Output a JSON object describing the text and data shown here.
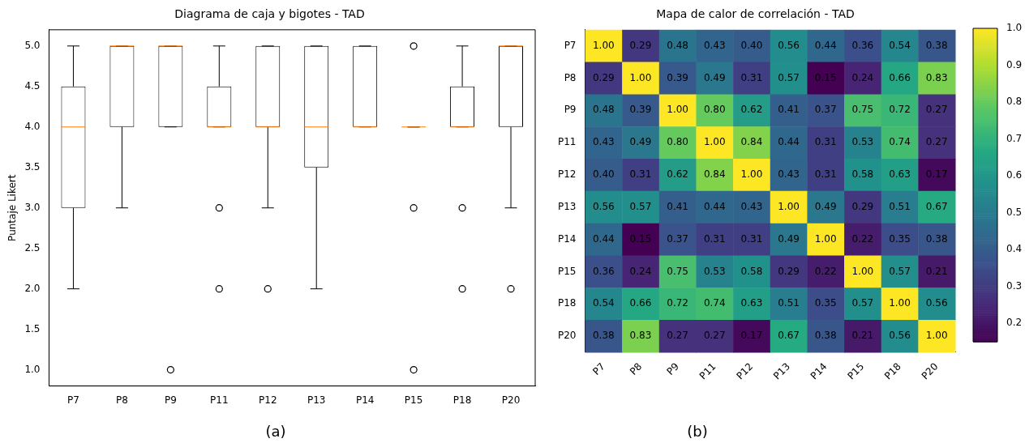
{
  "chart_data": [
    {
      "type": "box",
      "title": "Diagrama de caja y bigotes - TAD",
      "ylabel": "Puntaje Likert",
      "categories": [
        "P7",
        "P8",
        "P9",
        "P11",
        "P12",
        "P13",
        "P14",
        "P15",
        "P18",
        "P20"
      ],
      "boxes": [
        {
          "low": 2,
          "q1": 3,
          "median": 4,
          "q3": 4.5,
          "high": 5
        },
        {
          "low": 3,
          "q1": 4,
          "median": 5,
          "q3": 5,
          "high": 5
        },
        {
          "low": 4,
          "q1": 4,
          "median": 5,
          "q3": 5,
          "high": 5,
          "outliers": [
            1
          ]
        },
        {
          "low": 4,
          "q1": 4,
          "median": 4,
          "q3": 4.5,
          "high": 5,
          "outliers": [
            3,
            2
          ]
        },
        {
          "low": 3,
          "q1": 4,
          "median": 4,
          "q3": 5,
          "high": 5,
          "outliers": [
            2
          ]
        },
        {
          "low": 2,
          "q1": 3.5,
          "median": 4,
          "q3": 5,
          "high": 5
        },
        {
          "low": 4,
          "q1": 4,
          "median": 4,
          "q3": 5,
          "high": 5
        },
        {
          "low": 4,
          "q1": 4,
          "median": 4,
          "q3": 4,
          "high": 4,
          "outliers": [
            5,
            3,
            1
          ]
        },
        {
          "low": 4,
          "q1": 4,
          "median": 4,
          "q3": 4.5,
          "high": 5,
          "outliers": [
            3,
            2
          ]
        },
        {
          "low": 3,
          "q1": 4,
          "median": 5,
          "q3": 5,
          "high": 5,
          "outliers": [
            2
          ]
        }
      ],
      "ylim": [
        0.8,
        5.2
      ],
      "yticks": [
        {
          "value": 1,
          "label": "1.0"
        },
        {
          "value": 1.5,
          "label": "1.5"
        },
        {
          "value": 2,
          "label": "2.0"
        },
        {
          "value": 2.5,
          "label": "2.5"
        },
        {
          "value": 3,
          "label": "3.0"
        },
        {
          "value": 3.5,
          "label": "3.5"
        },
        {
          "value": 4,
          "label": "4.0"
        },
        {
          "value": 4.5,
          "label": "4.5"
        },
        {
          "value": 5,
          "label": "5.0"
        }
      ],
      "annotations": [
        "(a)"
      ]
    },
    {
      "type": "heatmap",
      "title": "Mapa de calor de correlación - TAD",
      "categories": [
        "P7",
        "P8",
        "P9",
        "P11",
        "P12",
        "P13",
        "P14",
        "P15",
        "P18",
        "P20"
      ],
      "y_categories": [
        "P7",
        "P8",
        "P9",
        "P11",
        "P12",
        "P13",
        "P14",
        "P15",
        "P18",
        "P20"
      ],
      "cells": [
        [
          1,
          0.29,
          0.48,
          0.43,
          0.4,
          0.56,
          0.44,
          0.36,
          0.54,
          0.38
        ],
        [
          0.29,
          1,
          0.39,
          0.49,
          0.31,
          0.57,
          0.15,
          0.24,
          0.66,
          0.83
        ],
        [
          0.48,
          0.39,
          1,
          0.8,
          0.62,
          0.41,
          0.37,
          0.75,
          0.72,
          0.27
        ],
        [
          0.43,
          0.49,
          0.8,
          1,
          0.84,
          0.44,
          0.31,
          0.53,
          0.74,
          0.27
        ],
        [
          0.4,
          0.31,
          0.62,
          0.84,
          1,
          0.43,
          0.31,
          0.58,
          0.63,
          0.17
        ],
        [
          0.56,
          0.57,
          0.41,
          0.44,
          0.43,
          1,
          0.49,
          0.29,
          0.51,
          0.67
        ],
        [
          0.44,
          0.15,
          0.37,
          0.31,
          0.31,
          0.49,
          1,
          0.22,
          0.35,
          0.38
        ],
        [
          0.36,
          0.24,
          0.75,
          0.53,
          0.58,
          0.29,
          0.22,
          1,
          0.57,
          0.21
        ],
        [
          0.54,
          0.66,
          0.72,
          0.74,
          0.63,
          0.51,
          0.35,
          0.57,
          1,
          0.56
        ],
        [
          0.38,
          0.83,
          0.27,
          0.27,
          0.17,
          0.67,
          0.38,
          0.21,
          0.56,
          1
        ]
      ],
      "cell_labels": [
        [
          "1.00",
          "0.29",
          "0.48",
          "0.43",
          "0.40",
          "0.56",
          "0.44",
          "0.36",
          "0.54",
          "0.38"
        ],
        [
          "0.29",
          "1.00",
          "0.39",
          "0.49",
          "0.31",
          "0.57",
          "0.15",
          "0.24",
          "0.66",
          "0.83"
        ],
        [
          "0.48",
          "0.39",
          "1.00",
          "0.80",
          "0.62",
          "0.41",
          "0.37",
          "0.75",
          "0.72",
          "0.27"
        ],
        [
          "0.43",
          "0.49",
          "0.80",
          "1.00",
          "0.84",
          "0.44",
          "0.31",
          "0.53",
          "0.74",
          "0.27"
        ],
        [
          "0.40",
          "0.31",
          "0.62",
          "0.84",
          "1.00",
          "0.43",
          "0.31",
          "0.58",
          "0.63",
          "0.17"
        ],
        [
          "0.56",
          "0.57",
          "0.41",
          "0.44",
          "0.43",
          "1.00",
          "0.49",
          "0.29",
          "0.51",
          "0.67"
        ],
        [
          "0.44",
          "0.15",
          "0.37",
          "0.31",
          "0.31",
          "0.49",
          "1.00",
          "0.22",
          "0.35",
          "0.38"
        ],
        [
          "0.36",
          "0.24",
          "0.75",
          "0.53",
          "0.58",
          "0.29",
          "0.22",
          "1.00",
          "0.57",
          "0.21"
        ],
        [
          "0.54",
          "0.66",
          "0.72",
          "0.74",
          "0.63",
          "0.51",
          "0.35",
          "0.57",
          "1.00",
          "0.56"
        ],
        [
          "0.38",
          "0.83",
          "0.27",
          "0.27",
          "0.17",
          "0.67",
          "0.38",
          "0.21",
          "0.56",
          "1.00"
        ]
      ],
      "clim": [
        0.15,
        1.0
      ],
      "cticks": [
        0.2,
        0.3,
        0.4,
        0.5,
        0.6,
        0.7,
        0.8,
        0.9,
        {
          "value": 1,
          "label": "1.0"
        }
      ],
      "annotations": [
        "(b)"
      ]
    }
  ]
}
